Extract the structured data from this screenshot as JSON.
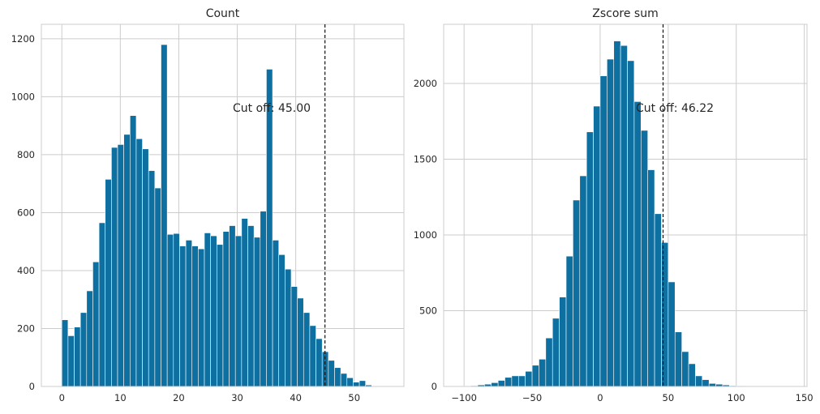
{
  "chart_data": [
    {
      "type": "histogram",
      "title": "Count",
      "xlim": [
        -3.5,
        58.5
      ],
      "ylim": [
        0,
        1250
      ],
      "xticks": [
        0,
        10,
        20,
        30,
        40,
        50
      ],
      "xtick_labels": [
        "0",
        "10",
        "20",
        "30",
        "40",
        "50"
      ],
      "yticks": [
        0,
        200,
        400,
        600,
        800,
        1000,
        1200
      ],
      "ytick_labels": [
        "0",
        "200",
        "400",
        "600",
        "800",
        "1000",
        "1200"
      ],
      "grid": true,
      "bin_start": 0,
      "bin_width": 1.06,
      "values": [
        230,
        175,
        205,
        255,
        330,
        430,
        565,
        715,
        825,
        835,
        870,
        935,
        855,
        820,
        745,
        685,
        1180,
        525,
        528,
        485,
        505,
        485,
        475,
        530,
        520,
        490,
        535,
        555,
        520,
        580,
        555,
        515,
        605,
        1095,
        505,
        455,
        405,
        345,
        305,
        255,
        210,
        165,
        120,
        90,
        65,
        45,
        30,
        15,
        20,
        5
      ],
      "cutoff": 45.0,
      "cutoff_label": "Cut off: 45.00",
      "color": "#0d70a1"
    },
    {
      "type": "histogram",
      "title": "Zscore sum",
      "xlim": [
        -115,
        152
      ],
      "ylim": [
        0,
        2390
      ],
      "xticks": [
        -100,
        -50,
        0,
        50,
        100,
        150
      ],
      "xtick_labels": [
        "−100",
        "−50",
        "0",
        "50",
        "100",
        "150"
      ],
      "yticks": [
        0,
        500,
        1000,
        1500,
        2000
      ],
      "ytick_labels": [
        "0",
        "500",
        "1000",
        "1500",
        "2000"
      ],
      "grid": true,
      "bin_start": -100,
      "bin_width": 5,
      "values": [
        2,
        5,
        10,
        15,
        25,
        40,
        60,
        70,
        70,
        100,
        140,
        180,
        320,
        450,
        590,
        860,
        1230,
        1390,
        1680,
        1850,
        2050,
        2160,
        2280,
        2250,
        2150,
        1880,
        1690,
        1430,
        1140,
        950,
        690,
        360,
        230,
        150,
        70,
        45,
        20,
        15,
        10,
        5,
        3,
        2,
        0,
        0,
        0,
        0,
        0,
        0,
        0,
        0
      ],
      "cutoff": 46.22,
      "cutoff_label": "Cut off: 46.22",
      "color": "#0d70a1"
    }
  ]
}
